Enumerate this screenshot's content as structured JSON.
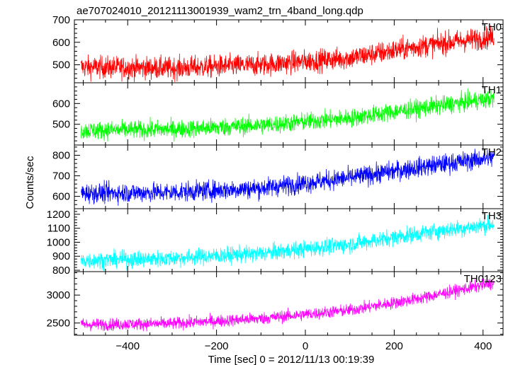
{
  "title": "ae707024010_20121113001939_wam2_trn_4band_long.qdp",
  "xlabel": "Time [sec] 0 = 2012/11/13 00:19:39",
  "ylabel": "Counts/sec",
  "chart_data": {
    "type": "line",
    "title": "ae707024010_20121113001939_wam2_trn_4band_long.qdp",
    "xlabel": "Time [sec] 0 = 2012/11/13 00:19:39",
    "ylabel": "Counts/sec",
    "xlim": [
      -520,
      445
    ],
    "x_ticks": [
      -400,
      -200,
      0,
      200,
      400
    ],
    "x_range_data": [
      -505,
      425
    ],
    "grid": false,
    "panels": [
      {
        "name": "TH0",
        "color": "#ff0000",
        "ylim": [
          420,
          700
        ],
        "y_ticks": [
          500,
          600,
          700
        ],
        "trend": [
          [
            -505,
            490
          ],
          [
            -300,
            485
          ],
          [
            -100,
            500
          ],
          [
            100,
            530
          ],
          [
            250,
            580
          ],
          [
            425,
            625
          ]
        ],
        "noise": 25
      },
      {
        "name": "TH1",
        "color": "#00ff00",
        "ylim": [
          400,
          700
        ],
        "y_ticks": [
          500,
          600
        ],
        "trend": [
          [
            -505,
            470
          ],
          [
            -300,
            475
          ],
          [
            -100,
            495
          ],
          [
            100,
            530
          ],
          [
            250,
            575
          ],
          [
            425,
            625
          ]
        ],
        "noise": 22
      },
      {
        "name": "TH2",
        "color": "#0000ff",
        "ylim": [
          540,
          850
        ],
        "y_ticks": [
          600,
          700,
          800
        ],
        "trend": [
          [
            -505,
            615
          ],
          [
            -300,
            620
          ],
          [
            -100,
            640
          ],
          [
            100,
            690
          ],
          [
            250,
            740
          ],
          [
            425,
            790
          ]
        ],
        "noise": 24
      },
      {
        "name": "TH3",
        "color": "#00ffff",
        "ylim": [
          790,
          1240
        ],
        "y_ticks": [
          800,
          900,
          1000,
          1100,
          1200
        ],
        "trend": [
          [
            -505,
            870
          ],
          [
            -300,
            885
          ],
          [
            -100,
            920
          ],
          [
            100,
            985
          ],
          [
            250,
            1060
          ],
          [
            425,
            1130
          ]
        ],
        "noise": 30
      },
      {
        "name": "TH0123",
        "color": "#ff00ff",
        "ylim": [
          2280,
          3420
        ],
        "y_ticks": [
          2500,
          3000
        ],
        "trend": [
          [
            -505,
            2470
          ],
          [
            -300,
            2490
          ],
          [
            -100,
            2580
          ],
          [
            100,
            2730
          ],
          [
            250,
            2930
          ],
          [
            425,
            3220
          ]
        ],
        "noise": 55
      }
    ]
  }
}
